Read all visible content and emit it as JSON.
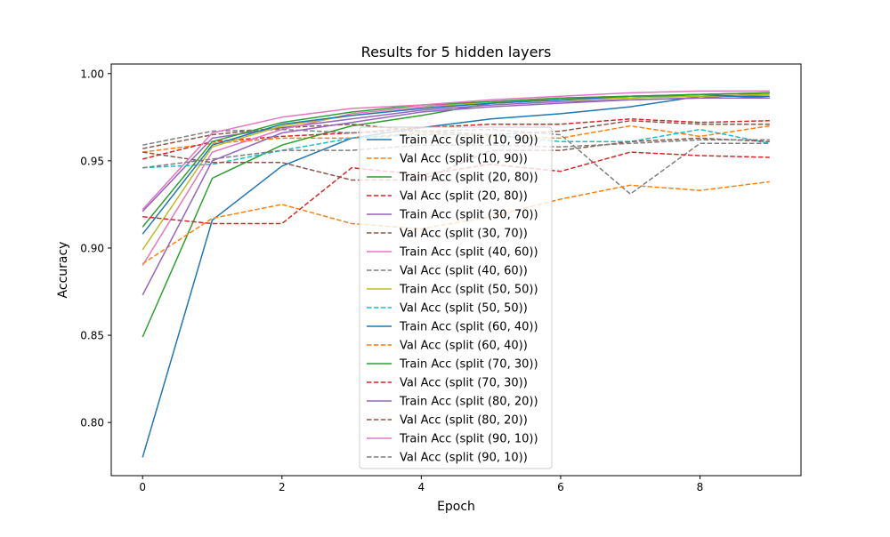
{
  "chart_data": {
    "type": "line",
    "title": "Results for 5 hidden layers",
    "xlabel": "Epoch",
    "ylabel": "Accuracy",
    "xlim": [
      -0.45,
      9.45
    ],
    "ylim": [
      0.7695,
      1.0055
    ],
    "xticks": [
      0,
      2,
      4,
      6,
      8
    ],
    "yticks": [
      0.8,
      0.85,
      0.9,
      0.95,
      1.0
    ],
    "xtick_labels": [
      "0",
      "2",
      "4",
      "6",
      "8"
    ],
    "ytick_labels": [
      "0.80",
      "0.85",
      "0.90",
      "0.95",
      "1.00"
    ],
    "grid": false,
    "legend_position": "center",
    "x": [
      0,
      1,
      2,
      3,
      4,
      5,
      6,
      7,
      8,
      9
    ],
    "series": [
      {
        "name": "Train Acc (split (10, 90))",
        "style": "solid",
        "color": "#1f77b4",
        "values": [
          0.78,
          0.916,
          0.947,
          0.963,
          0.969,
          0.974,
          0.977,
          0.981,
          0.987,
          0.987
        ]
      },
      {
        "name": "Val Acc (split (10, 90))",
        "style": "dashed",
        "color": "#ff7f0e",
        "values": [
          0.955,
          0.96,
          0.963,
          0.963,
          0.966,
          0.964,
          0.963,
          0.97,
          0.964,
          0.97
        ]
      },
      {
        "name": "Train Acc (split (20, 80))",
        "style": "solid",
        "color": "#2ca02c",
        "values": [
          0.849,
          0.94,
          0.959,
          0.97,
          0.976,
          0.983,
          0.985,
          0.986,
          0.988,
          0.989
        ]
      },
      {
        "name": "Val Acc (split (20, 80))",
        "style": "dashed",
        "color": "#d62728",
        "values": [
          0.951,
          0.961,
          0.964,
          0.966,
          0.969,
          0.971,
          0.971,
          0.974,
          0.972,
          0.973
        ]
      },
      {
        "name": "Train Acc (split (30, 70))",
        "style": "solid",
        "color": "#9467bd",
        "values": [
          0.921,
          0.963,
          0.969,
          0.974,
          0.979,
          0.982,
          0.984,
          0.985,
          0.986,
          0.989
        ]
      },
      {
        "name": "Val Acc (split (30, 70))",
        "style": "dashed",
        "color": "#8c564b",
        "values": [
          0.957,
          0.965,
          0.969,
          0.971,
          0.967,
          0.965,
          0.967,
          0.973,
          0.971,
          0.971
        ]
      },
      {
        "name": "Train Acc (split (40, 60))",
        "style": "solid",
        "color": "#e377c2",
        "values": [
          0.89,
          0.955,
          0.968,
          0.977,
          0.981,
          0.984,
          0.986,
          0.987,
          0.988,
          0.989
        ]
      },
      {
        "name": "Val Acc (split (40, 60))",
        "style": "dashed",
        "color": "#7f7f7f",
        "values": [
          0.959,
          0.967,
          0.968,
          0.966,
          0.967,
          0.968,
          0.965,
          0.931,
          0.96,
          0.96
        ]
      },
      {
        "name": "Train Acc (split (50, 50))",
        "style": "solid",
        "color": "#bcbd22",
        "values": [
          0.899,
          0.958,
          0.97,
          0.976,
          0.98,
          0.984,
          0.985,
          0.986,
          0.987,
          0.988
        ]
      },
      {
        "name": "Val Acc (split (50, 50))",
        "style": "dashed",
        "color": "#17becf",
        "values": [
          0.946,
          0.948,
          0.956,
          0.963,
          0.965,
          0.965,
          0.961,
          0.961,
          0.968,
          0.96
        ]
      },
      {
        "name": "Train Acc (split (60, 40))",
        "style": "solid",
        "color": "#1f77b4",
        "values": [
          0.908,
          0.959,
          0.971,
          0.976,
          0.98,
          0.983,
          0.985,
          0.987,
          0.988,
          0.986
        ]
      },
      {
        "name": "Val Acc (split (60, 40))",
        "style": "dashed",
        "color": "#ff7f0e",
        "values": [
          0.891,
          0.917,
          0.925,
          0.914,
          0.911,
          0.918,
          0.928,
          0.936,
          0.933,
          0.938
        ]
      },
      {
        "name": "Train Acc (split (70, 30))",
        "style": "solid",
        "color": "#2ca02c",
        "values": [
          0.912,
          0.961,
          0.972,
          0.978,
          0.982,
          0.984,
          0.986,
          0.987,
          0.988,
          0.989
        ]
      },
      {
        "name": "Val Acc (split (70, 30))",
        "style": "dashed",
        "color": "#d62728",
        "values": [
          0.918,
          0.914,
          0.914,
          0.946,
          0.942,
          0.948,
          0.944,
          0.955,
          0.953,
          0.952
        ]
      },
      {
        "name": "Train Acc (split (80, 20))",
        "style": "solid",
        "color": "#9467bd",
        "values": [
          0.873,
          0.95,
          0.966,
          0.972,
          0.978,
          0.981,
          0.983,
          0.985,
          0.986,
          0.986
        ]
      },
      {
        "name": "Val Acc (split (80, 20))",
        "style": "dashed",
        "color": "#8c564b",
        "values": [
          0.955,
          0.949,
          0.949,
          0.939,
          0.939,
          0.956,
          0.956,
          0.961,
          0.963,
          0.961
        ]
      },
      {
        "name": "Train Acc (split (90, 10))",
        "style": "solid",
        "color": "#e377c2",
        "values": [
          0.922,
          0.966,
          0.975,
          0.98,
          0.982,
          0.985,
          0.987,
          0.989,
          0.99,
          0.99
        ]
      },
      {
        "name": "Val Acc (split (90, 10))",
        "style": "dashed",
        "color": "#7f7f7f",
        "values": [
          0.946,
          0.951,
          0.956,
          0.956,
          0.959,
          0.959,
          0.958,
          0.96,
          0.962,
          0.962
        ]
      }
    ]
  }
}
